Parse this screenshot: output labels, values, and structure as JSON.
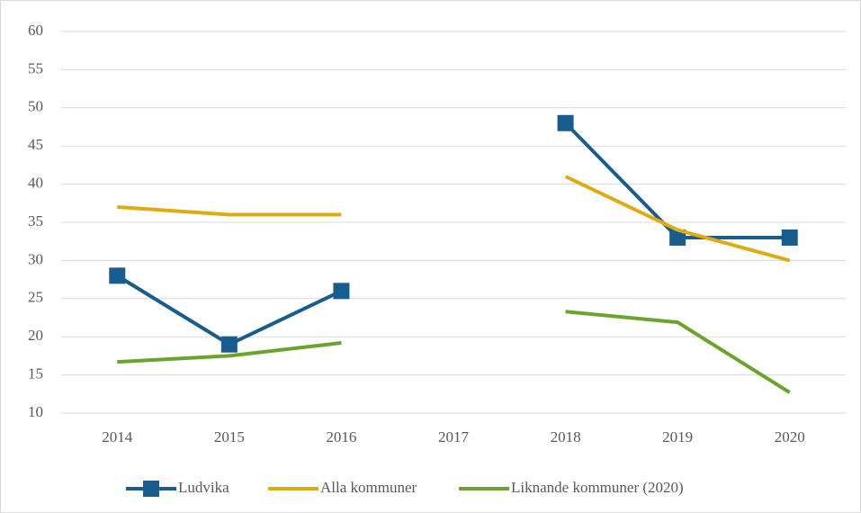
{
  "chart_data": {
    "type": "line",
    "categories": [
      "2014",
      "2015",
      "2016",
      "2017",
      "2018",
      "2019",
      "2020"
    ],
    "series": [
      {
        "name": "Ludvika",
        "color": "#175d8f",
        "marker": "square",
        "values": [
          28,
          19,
          26,
          null,
          48,
          33,
          33
        ]
      },
      {
        "name": "Alla kommuner",
        "color": "#dfab13",
        "values": [
          37,
          36,
          36,
          null,
          41,
          34,
          30
        ]
      },
      {
        "name": "Liknande kommuner (2020)",
        "color": "#6ba42c",
        "values": [
          16.7,
          17.5,
          19.2,
          null,
          23.3,
          21.9,
          12.7
        ]
      }
    ],
    "ylim": [
      10,
      60
    ],
    "yticks": [
      10,
      15,
      20,
      25,
      30,
      35,
      40,
      45,
      50,
      55,
      60
    ],
    "grid": true,
    "legend": "bottom"
  }
}
